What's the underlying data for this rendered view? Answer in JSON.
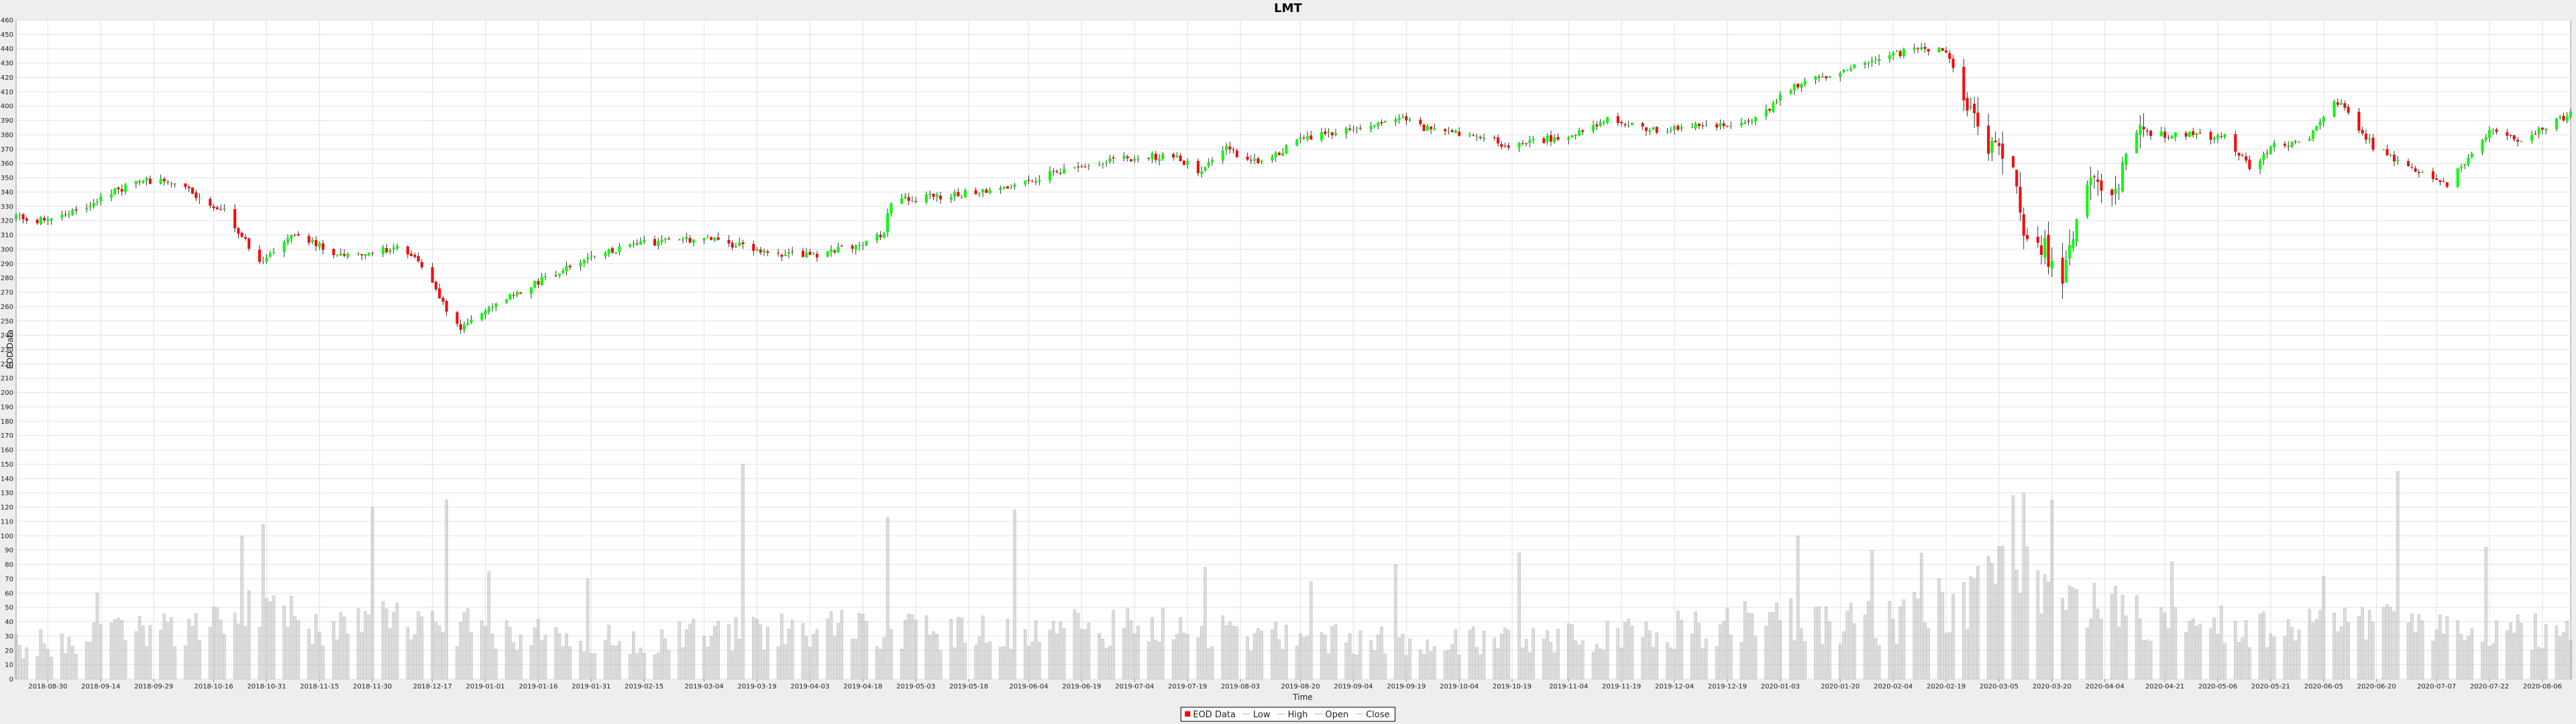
{
  "chart_data": {
    "type": "candlestick",
    "title": "LMT",
    "xlabel": "Time",
    "ylabel": "EOD Data",
    "ylim": [
      0,
      460
    ],
    "y_ticks": [
      0,
      10,
      20,
      30,
      40,
      50,
      60,
      70,
      80,
      90,
      100,
      110,
      120,
      130,
      140,
      150,
      160,
      170,
      180,
      190,
      200,
      210,
      220,
      230,
      240,
      250,
      260,
      270,
      280,
      290,
      300,
      310,
      320,
      330,
      340,
      350,
      360,
      370,
      380,
      390,
      400,
      410,
      420,
      430,
      440,
      450,
      460
    ],
    "x_range": [
      "2018-08-21",
      "2020-08-14"
    ],
    "x_ticks": [
      "2018-08-30",
      "2018-09-14",
      "2018-09-29",
      "2018-10-16",
      "2018-10-31",
      "2018-11-15",
      "2018-11-30",
      "2018-12-17",
      "2019-01-01",
      "2019-01-16",
      "2019-01-31",
      "2019-02-15",
      "2019-03-04",
      "2019-03-19",
      "2019-04-03",
      "2019-04-18",
      "2019-05-03",
      "2019-05-18",
      "2019-06-04",
      "2019-06-19",
      "2019-07-04",
      "2019-07-19",
      "2019-08-03",
      "2019-08-20",
      "2019-09-04",
      "2019-09-19",
      "2019-10-04",
      "2019-10-19",
      "2019-11-04",
      "2019-11-19",
      "2019-12-04",
      "2019-12-19",
      "2020-01-03",
      "2020-01-20",
      "2020-02-04",
      "2020-02-19",
      "2020-03-05",
      "2020-03-20",
      "2020-04-04",
      "2020-04-21",
      "2020-05-06",
      "2020-05-21",
      "2020-06-05",
      "2020-06-20",
      "2020-07-07",
      "2020-07-22",
      "2020-08-06"
    ],
    "price_anchors": [
      [
        "2018-08-21",
        322
      ],
      [
        "2018-08-30",
        320
      ],
      [
        "2018-09-10",
        330
      ],
      [
        "2018-09-19",
        342
      ],
      [
        "2018-09-27",
        348
      ],
      [
        "2018-10-05",
        347
      ],
      [
        "2018-10-12",
        335
      ],
      [
        "2018-10-19",
        328
      ],
      [
        "2018-10-29",
        290
      ],
      [
        "2018-11-08",
        310
      ],
      [
        "2018-11-19",
        298
      ],
      [
        "2018-11-26",
        296
      ],
      [
        "2018-12-03",
        300
      ],
      [
        "2018-12-07",
        300
      ],
      [
        "2018-12-12",
        297
      ],
      [
        "2018-12-21",
        258
      ],
      [
        "2018-12-25",
        246
      ],
      [
        "2019-01-02",
        260
      ],
      [
        "2019-01-14",
        275
      ],
      [
        "2019-01-28",
        292
      ],
      [
        "2019-02-11",
        303
      ],
      [
        "2019-02-25",
        307
      ],
      [
        "2019-03-07",
        307
      ],
      [
        "2019-03-21",
        298
      ],
      [
        "2019-04-05",
        296
      ],
      [
        "2019-04-17",
        303
      ],
      [
        "2019-04-24",
        312
      ],
      [
        "2019-04-26",
        334
      ],
      [
        "2019-05-13",
        338
      ],
      [
        "2019-05-29",
        342
      ],
      [
        "2019-06-07",
        350
      ],
      [
        "2019-06-14",
        356
      ],
      [
        "2019-06-28",
        362
      ],
      [
        "2019-07-15",
        366
      ],
      [
        "2019-07-22",
        355
      ],
      [
        "2019-07-30",
        370
      ],
      [
        "2019-08-08",
        360
      ],
      [
        "2019-08-22",
        378
      ],
      [
        "2019-09-06",
        386
      ],
      [
        "2019-09-16",
        392
      ],
      [
        "2019-09-25",
        384
      ],
      [
        "2019-10-08",
        380
      ],
      [
        "2019-10-18",
        372
      ],
      [
        "2019-11-04",
        380
      ],
      [
        "2019-11-15",
        390
      ],
      [
        "2019-11-29",
        383
      ],
      [
        "2019-12-16",
        387
      ],
      [
        "2019-12-27",
        390
      ],
      [
        "2020-01-06",
        413
      ],
      [
        "2020-01-21",
        425
      ],
      [
        "2020-02-03",
        435
      ],
      [
        "2020-02-10",
        440
      ],
      [
        "2020-02-19",
        438
      ],
      [
        "2020-02-24",
        405
      ],
      [
        "2020-03-02",
        370
      ],
      [
        "2020-03-09",
        360
      ],
      [
        "2020-03-12",
        305
      ],
      [
        "2020-03-18",
        300
      ],
      [
        "2020-03-23",
        278
      ],
      [
        "2020-03-30",
        345
      ],
      [
        "2020-04-06",
        340
      ],
      [
        "2020-04-14",
        380
      ],
      [
        "2020-04-28",
        380
      ],
      [
        "2020-05-08",
        378
      ],
      [
        "2020-05-15",
        358
      ],
      [
        "2020-05-22",
        372
      ],
      [
        "2020-06-01",
        378
      ],
      [
        "2020-06-08",
        405
      ],
      [
        "2020-06-12",
        395
      ],
      [
        "2020-06-19",
        372
      ],
      [
        "2020-06-29",
        358
      ],
      [
        "2020-07-10",
        345
      ],
      [
        "2020-07-22",
        382
      ],
      [
        "2020-07-31",
        377
      ],
      [
        "2020-08-14",
        395
      ]
    ],
    "volume_bands": [
      [
        "2018-08-21",
        25
      ],
      [
        "2018-10-15",
        40
      ],
      [
        "2018-10-31",
        55
      ],
      [
        "2018-11-16",
        35
      ],
      [
        "2018-12-10",
        45
      ],
      [
        "2019-01-08",
        35
      ],
      [
        "2019-02-15",
        30
      ],
      [
        "2019-04-15",
        40
      ],
      [
        "2019-05-01",
        35
      ],
      [
        "2019-07-15",
        40
      ],
      [
        "2019-08-15",
        30
      ],
      [
        "2019-11-01",
        30
      ],
      [
        "2020-01-06",
        45
      ],
      [
        "2020-02-03",
        42
      ],
      [
        "2020-02-28",
        65
      ],
      [
        "2020-03-06",
        85
      ],
      [
        "2020-03-31",
        60
      ],
      [
        "2020-04-24",
        40
      ],
      [
        "2020-06-01",
        38
      ],
      [
        "2020-07-15",
        42
      ],
      [
        "2020-08-14",
        32
      ]
    ],
    "volume_spikes": [
      [
        "2018-09-13",
        60
      ],
      [
        "2018-10-24",
        100
      ],
      [
        "2018-10-30",
        108
      ],
      [
        "2018-11-30",
        120
      ],
      [
        "2018-12-21",
        125
      ],
      [
        "2019-01-02",
        75
      ],
      [
        "2019-01-30",
        70
      ],
      [
        "2019-03-15",
        150
      ],
      [
        "2019-04-25",
        113
      ],
      [
        "2019-05-31",
        118
      ],
      [
        "2019-07-24",
        78
      ],
      [
        "2019-08-23",
        68
      ],
      [
        "2019-09-16",
        80
      ],
      [
        "2019-10-21",
        88
      ],
      [
        "2020-01-08",
        100
      ],
      [
        "2020-01-29",
        90
      ],
      [
        "2020-02-12",
        88
      ],
      [
        "2020-03-09",
        128
      ],
      [
        "2020-03-12",
        130
      ],
      [
        "2020-03-20",
        125
      ],
      [
        "2020-04-23",
        82
      ],
      [
        "2020-06-05",
        72
      ],
      [
        "2020-06-26",
        145
      ],
      [
        "2020-07-21",
        92
      ]
    ],
    "colors": {
      "up": "#00ff00",
      "down": "#ff0000",
      "wick": "#000000",
      "volume": "#b4b4b4"
    },
    "grid": true,
    "legend": {
      "position": "bottom-center",
      "entries": [
        {
          "label": "EOD Data",
          "color": "#ff0000"
        },
        {
          "label": "Low",
          "color": "#d0d0d0"
        },
        {
          "label": "High",
          "color": "#d0d0d0"
        },
        {
          "label": "Open",
          "color": "#d0d0d0"
        },
        {
          "label": "Close",
          "color": "#d0d0d0"
        }
      ]
    }
  }
}
